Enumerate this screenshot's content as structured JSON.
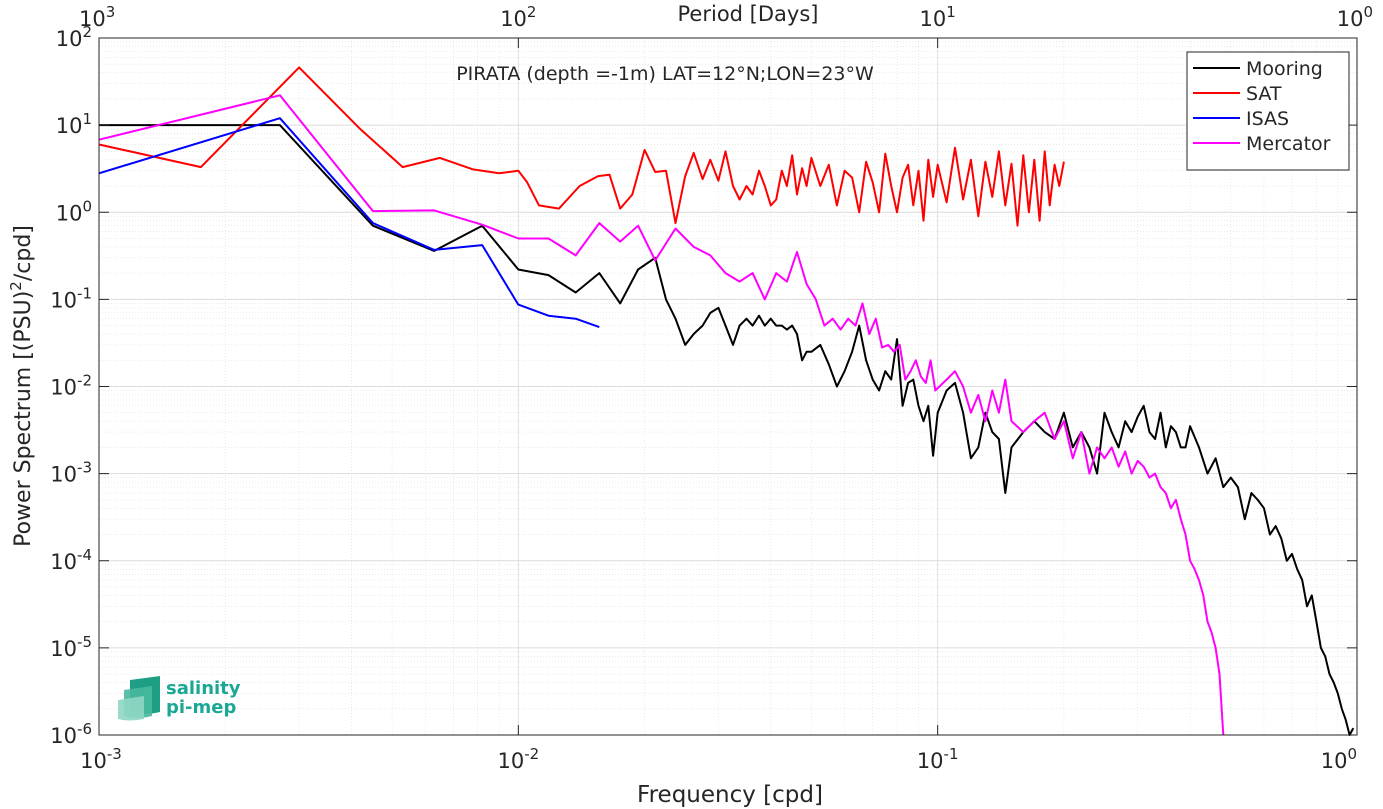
{
  "chart_data": {
    "type": "line",
    "title": "PIRATA (depth =-1m) LAT=12°N;LON=23°W",
    "xlabel": "Frequency [cpd]",
    "ylabel": "Power Spectrum [(PSU)²/cpd]",
    "top_xlabel": "Period [Days]",
    "x_scale": "log",
    "y_scale": "log",
    "xlim": [
      0.001,
      1
    ],
    "ylim": [
      1e-06,
      100
    ],
    "grid": true,
    "legend_position": "top-right",
    "x_ticks": [
      {
        "value": 0.001,
        "base": "10",
        "exp": "-3"
      },
      {
        "value": 0.01,
        "base": "10",
        "exp": "-2"
      },
      {
        "value": 0.1,
        "base": "10",
        "exp": "-1"
      },
      {
        "value": 1,
        "base": "10",
        "exp": "0"
      }
    ],
    "top_x_ticks": [
      {
        "value": 0.001,
        "base": "10",
        "exp": "3"
      },
      {
        "value": 0.01,
        "base": "10",
        "exp": "2"
      },
      {
        "value": 0.1,
        "base": "10",
        "exp": "1"
      },
      {
        "value": 1,
        "base": "10",
        "exp": "0"
      }
    ],
    "y_ticks": [
      {
        "value": 100,
        "base": "10",
        "exp": "2"
      },
      {
        "value": 10,
        "base": "10",
        "exp": "1"
      },
      {
        "value": 1,
        "base": "10",
        "exp": "0"
      },
      {
        "value": 0.1,
        "base": "10",
        "exp": "-1"
      },
      {
        "value": 0.01,
        "base": "10",
        "exp": "-2"
      },
      {
        "value": 0.001,
        "base": "10",
        "exp": "-3"
      },
      {
        "value": 0.0001,
        "base": "10",
        "exp": "-4"
      },
      {
        "value": 1e-05,
        "base": "10",
        "exp": "-5"
      },
      {
        "value": 1e-06,
        "base": "10",
        "exp": "-6"
      }
    ],
    "series": [
      {
        "name": "Mooring",
        "color": "#000000",
        "x": [
          0.001,
          0.0027,
          0.0045,
          0.0063,
          0.0082,
          0.01,
          0.0118,
          0.0137,
          0.0156,
          0.0175,
          0.0193,
          0.0212,
          0.0225,
          0.0237,
          0.025,
          0.0262,
          0.0275,
          0.0287,
          0.03,
          0.0312,
          0.0325,
          0.0337,
          0.035,
          0.0362,
          0.0375,
          0.0387,
          0.04,
          0.0412,
          0.0425,
          0.0437,
          0.045,
          0.0462,
          0.0475,
          0.0487,
          0.05,
          0.0525,
          0.055,
          0.0575,
          0.06,
          0.0625,
          0.065,
          0.0675,
          0.07,
          0.0725,
          0.075,
          0.0775,
          0.08,
          0.0825,
          0.085,
          0.0875,
          0.09,
          0.0925,
          0.095,
          0.0975,
          0.1,
          0.105,
          0.11,
          0.115,
          0.12,
          0.125,
          0.13,
          0.135,
          0.14,
          0.145,
          0.15,
          0.16,
          0.17,
          0.18,
          0.19,
          0.2,
          0.21,
          0.22,
          0.23,
          0.24,
          0.25,
          0.26,
          0.27,
          0.28,
          0.29,
          0.3,
          0.31,
          0.32,
          0.33,
          0.34,
          0.35,
          0.36,
          0.37,
          0.38,
          0.39,
          0.4,
          0.42,
          0.44,
          0.46,
          0.48,
          0.5,
          0.52,
          0.54,
          0.56,
          0.58,
          0.6,
          0.62,
          0.64,
          0.66,
          0.68,
          0.7,
          0.72,
          0.74,
          0.76,
          0.78,
          0.8,
          0.82,
          0.84,
          0.86,
          0.88,
          0.9,
          0.92,
          0.94,
          0.96,
          0.98
        ],
        "y": [
          10,
          10,
          0.7,
          0.36,
          0.7,
          0.22,
          0.19,
          0.12,
          0.2,
          0.09,
          0.22,
          0.3,
          0.1,
          0.06,
          0.03,
          0.04,
          0.05,
          0.07,
          0.08,
          0.05,
          0.03,
          0.05,
          0.06,
          0.05,
          0.065,
          0.05,
          0.06,
          0.05,
          0.05,
          0.045,
          0.05,
          0.04,
          0.02,
          0.025,
          0.025,
          0.03,
          0.018,
          0.01,
          0.015,
          0.025,
          0.05,
          0.02,
          0.012,
          0.009,
          0.015,
          0.012,
          0.035,
          0.006,
          0.011,
          0.012,
          0.006,
          0.004,
          0.006,
          0.0016,
          0.005,
          0.009,
          0.011,
          0.005,
          0.0015,
          0.002,
          0.005,
          0.003,
          0.0025,
          0.0006,
          0.002,
          0.003,
          0.004,
          0.003,
          0.0025,
          0.005,
          0.002,
          0.003,
          0.002,
          0.001,
          0.005,
          0.003,
          0.002,
          0.004,
          0.003,
          0.0045,
          0.006,
          0.003,
          0.0025,
          0.005,
          0.002,
          0.0035,
          0.003,
          0.002,
          0.002,
          0.0035,
          0.002,
          0.001,
          0.0015,
          0.0007,
          0.0009,
          0.0007,
          0.0003,
          0.0006,
          0.0005,
          0.0004,
          0.0002,
          0.00025,
          0.00018,
          0.0001,
          0.00012,
          8e-05,
          6e-05,
          3e-05,
          4e-05,
          2e-05,
          1e-05,
          8e-06,
          5e-06,
          4e-06,
          3e-06,
          2e-06,
          1.5e-06,
          1e-06,
          1.2e-06
        ]
      },
      {
        "name": "SAT",
        "color": "#ff0000",
        "x": [
          0.001,
          0.00175,
          0.003,
          0.0042,
          0.0053,
          0.0065,
          0.0078,
          0.009,
          0.01,
          0.0105,
          0.0112,
          0.0125,
          0.014,
          0.0155,
          0.0165,
          0.0175,
          0.0187,
          0.02,
          0.0212,
          0.0225,
          0.0237,
          0.025,
          0.0262,
          0.0275,
          0.0287,
          0.03,
          0.0312,
          0.0325,
          0.0337,
          0.035,
          0.0362,
          0.0375,
          0.0387,
          0.04,
          0.0412,
          0.0425,
          0.0437,
          0.045,
          0.0462,
          0.0475,
          0.0487,
          0.05,
          0.0525,
          0.055,
          0.0575,
          0.06,
          0.0625,
          0.065,
          0.0675,
          0.07,
          0.0725,
          0.075,
          0.0775,
          0.08,
          0.0825,
          0.085,
          0.0875,
          0.09,
          0.0925,
          0.095,
          0.0975,
          0.1,
          0.105,
          0.11,
          0.115,
          0.12,
          0.125,
          0.13,
          0.135,
          0.14,
          0.145,
          0.15,
          0.155,
          0.16,
          0.165,
          0.17,
          0.175,
          0.18,
          0.185,
          0.19,
          0.195,
          0.2
        ],
        "y": [
          6,
          3.3,
          46,
          9,
          3.3,
          4.2,
          3.1,
          2.8,
          3.0,
          2.2,
          1.2,
          1.1,
          2.0,
          2.6,
          2.7,
          1.1,
          1.6,
          5.2,
          2.9,
          3.0,
          0.75,
          2.6,
          4.8,
          2.4,
          4.0,
          2.3,
          5.0,
          2.0,
          1.4,
          2.0,
          1.6,
          3.0,
          2.0,
          1.2,
          1.4,
          3.0,
          2.0,
          4.5,
          1.6,
          3.2,
          2.0,
          4.2,
          2.0,
          3.5,
          1.2,
          3.0,
          2.5,
          1.0,
          3.8,
          2.2,
          1.0,
          4.7,
          2.0,
          1.0,
          2.5,
          3.5,
          1.2,
          3.0,
          0.8,
          4.0,
          1.5,
          3.5,
          1.3,
          5.5,
          1.4,
          4.0,
          0.9,
          3.8,
          1.5,
          5.0,
          1.2,
          3.6,
          0.7,
          4.5,
          1.0,
          4.0,
          0.8,
          5.0,
          1.2,
          3.5,
          2.0,
          3.8
        ]
      },
      {
        "name": "ISAS",
        "color": "#0000ff",
        "x": [
          0.001,
          0.0027,
          0.0045,
          0.0063,
          0.0082,
          0.01,
          0.0118,
          0.0137,
          0.0156
        ],
        "y": [
          2.8,
          12,
          0.75,
          0.37,
          0.42,
          0.087,
          0.065,
          0.06,
          0.048
        ]
      },
      {
        "name": "Mercator",
        "color": "#ff00ff",
        "x": [
          0.001,
          0.0027,
          0.0045,
          0.0063,
          0.0082,
          0.01,
          0.0118,
          0.0137,
          0.0156,
          0.0175,
          0.0193,
          0.0212,
          0.0237,
          0.0262,
          0.0287,
          0.0312,
          0.0337,
          0.0362,
          0.0387,
          0.0412,
          0.0437,
          0.0462,
          0.0487,
          0.0512,
          0.0537,
          0.0562,
          0.0587,
          0.0612,
          0.0637,
          0.0662,
          0.0687,
          0.0712,
          0.0737,
          0.0762,
          0.0787,
          0.0812,
          0.0837,
          0.0862,
          0.0887,
          0.0912,
          0.0937,
          0.0962,
          0.0987,
          0.105,
          0.11,
          0.115,
          0.12,
          0.125,
          0.13,
          0.135,
          0.14,
          0.145,
          0.15,
          0.16,
          0.17,
          0.18,
          0.19,
          0.2,
          0.21,
          0.22,
          0.23,
          0.24,
          0.25,
          0.26,
          0.27,
          0.28,
          0.29,
          0.3,
          0.31,
          0.32,
          0.33,
          0.34,
          0.35,
          0.36,
          0.37,
          0.38,
          0.39,
          0.4,
          0.41,
          0.42,
          0.43,
          0.44,
          0.45,
          0.46,
          0.47,
          0.48
        ],
        "y": [
          6.8,
          22,
          1.03,
          1.05,
          0.72,
          0.5,
          0.5,
          0.32,
          0.75,
          0.46,
          0.7,
          0.28,
          0.65,
          0.4,
          0.32,
          0.2,
          0.16,
          0.2,
          0.1,
          0.2,
          0.16,
          0.35,
          0.15,
          0.1,
          0.05,
          0.06,
          0.045,
          0.06,
          0.05,
          0.09,
          0.04,
          0.06,
          0.028,
          0.03,
          0.025,
          0.03,
          0.012,
          0.015,
          0.02,
          0.013,
          0.011,
          0.02,
          0.009,
          0.012,
          0.015,
          0.01,
          0.005,
          0.008,
          0.004,
          0.009,
          0.005,
          0.012,
          0.004,
          0.003,
          0.004,
          0.005,
          0.0025,
          0.004,
          0.0015,
          0.003,
          0.001,
          0.002,
          0.0015,
          0.002,
          0.0012,
          0.0018,
          0.001,
          0.0014,
          0.0012,
          0.0009,
          0.001,
          0.0007,
          0.0006,
          0.0004,
          0.0005,
          0.0003,
          0.0002,
          0.0001,
          8e-05,
          6e-05,
          4e-05,
          2e-05,
          1.5e-05,
          1e-05,
          5e-06,
          1e-06
        ]
      }
    ]
  },
  "logo": {
    "line1": "salinity",
    "line2": "pi-mep",
    "color": "#1aa894"
  }
}
